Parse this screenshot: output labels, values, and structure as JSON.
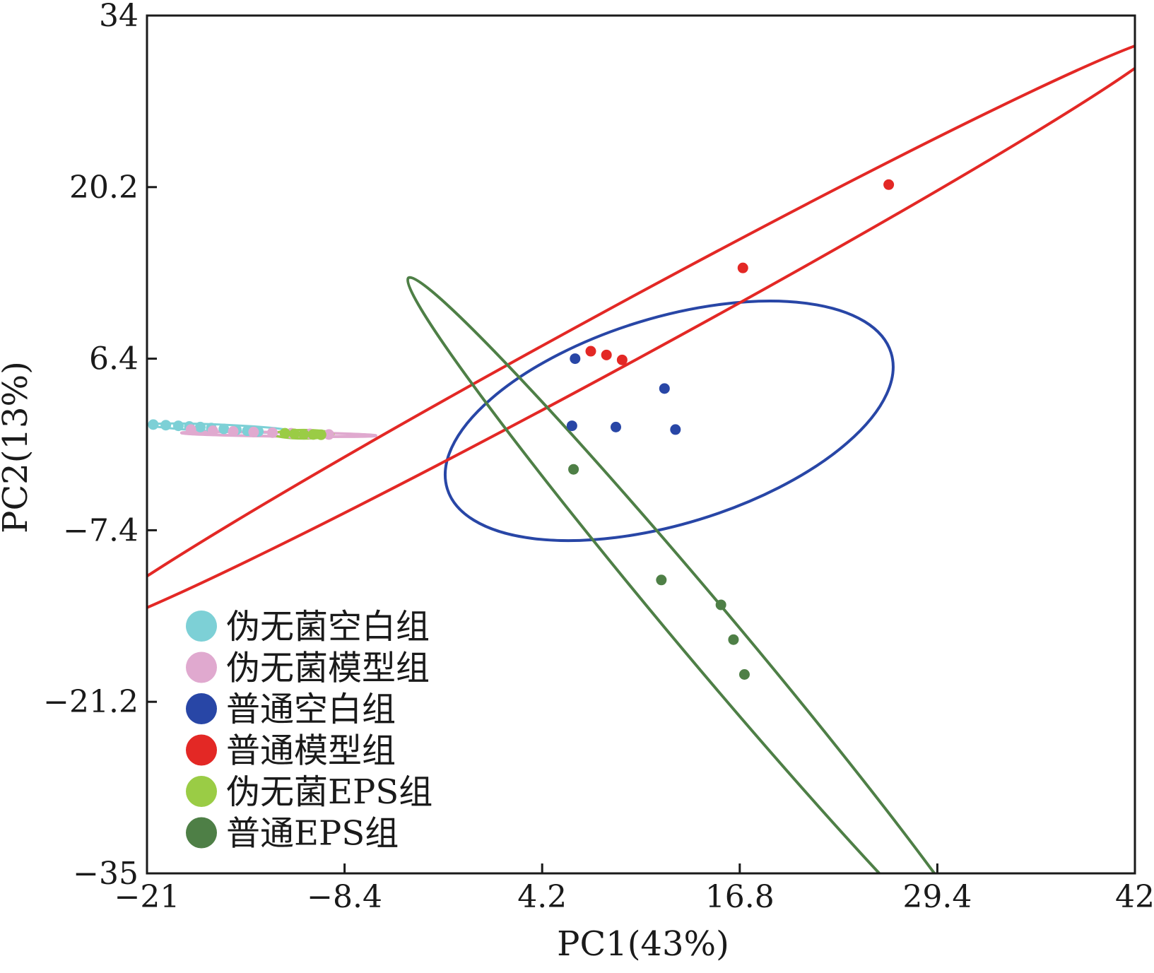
{
  "chart_data": {
    "type": "scatter",
    "title": "",
    "xlabel": "PC1(43%)",
    "ylabel": "PC2(13%)",
    "xlim": [
      -21,
      42
    ],
    "ylim": [
      -35,
      34
    ],
    "xticks": [
      -21,
      -8.4,
      4.2,
      16.8,
      29.4,
      42
    ],
    "yticks": [
      -35,
      -21.2,
      -7.4,
      6.4,
      20.2,
      34
    ],
    "xtick_labels": [
      "−21",
      "−8.4",
      "4.2",
      "16.8",
      "29.4",
      "42"
    ],
    "ytick_labels": [
      "−35",
      "−21.2",
      "−7.4",
      "6.4",
      "20.2",
      "34"
    ],
    "grid": false,
    "legend_position": "bottom-left",
    "series": [
      {
        "name": "伪无菌空白组",
        "color": "#7dd0d6",
        "points": [
          [
            -20.6,
            1.1
          ],
          [
            -19.8,
            1.05
          ],
          [
            -19,
            1.0
          ],
          [
            -18.3,
            0.95
          ],
          [
            -17.6,
            0.9
          ],
          [
            -16.9,
            0.82
          ],
          [
            -16.1,
            0.75
          ],
          [
            -15.3,
            0.68
          ],
          [
            -14.6,
            0.6
          ],
          [
            -13.9,
            0.55
          ]
        ],
        "ellipse": {
          "cx": -16.3,
          "cy": 0.82,
          "rx": 4.5,
          "ry": 0.28,
          "angle": -2.5
        }
      },
      {
        "name": "伪无菌模型组",
        "color": "#e0a9cf",
        "points": [
          [
            -18.2,
            0.7
          ],
          [
            -16.8,
            0.6
          ],
          [
            -15.5,
            0.55
          ],
          [
            -14.2,
            0.5
          ],
          [
            -13,
            0.45
          ],
          [
            -11.8,
            0.4
          ],
          [
            -10.6,
            0.35
          ],
          [
            -9.4,
            0.3
          ]
        ],
        "ellipse": {
          "cx": -12.6,
          "cy": 0.32,
          "rx": 6.2,
          "ry": 0.16,
          "angle": -0.8
        }
      },
      {
        "name": "普通空白组",
        "color": "#2846a6",
        "points": [
          [
            6.3,
            6.4
          ],
          [
            12,
            4.0
          ],
          [
            6.1,
            1.0
          ],
          [
            8.9,
            0.9
          ],
          [
            12.7,
            0.7
          ]
        ],
        "ellipse": {
          "cx": 12.3,
          "cy": 1.4,
          "rx": 14.8,
          "ry": 8.3,
          "angle": 17
        }
      },
      {
        "name": "普通模型组",
        "color": "#e32825",
        "points": [
          [
            26.3,
            20.4
          ],
          [
            17,
            13.7
          ],
          [
            7.3,
            7.0
          ],
          [
            8.3,
            6.7
          ],
          [
            9.3,
            6.3
          ]
        ],
        "ellipse": {
          "cx": 9.4,
          "cy": 8.4,
          "rx": 39.5,
          "ry": 2.3,
          "angle": 28.5
        }
      },
      {
        "name": "伪无菌EPS组",
        "color": "#9acc45",
        "points": [
          [
            -12.2,
            0.4
          ],
          [
            -11.6,
            0.35
          ],
          [
            -11,
            0.32
          ],
          [
            -10.4,
            0.3
          ],
          [
            -9.9,
            0.28
          ]
        ],
        "ellipse": {
          "cx": -11,
          "cy": 0.32,
          "rx": 1.9,
          "ry": 0.35,
          "angle": 0
        }
      },
      {
        "name": "普通EPS组",
        "color": "#4e7f46",
        "points": [
          [
            6.2,
            -2.5
          ],
          [
            11.8,
            -11.4
          ],
          [
            15.6,
            -13.4
          ],
          [
            16.4,
            -16.2
          ],
          [
            17.1,
            -19.0
          ]
        ],
        "ellipse": {
          "cx": 14.7,
          "cy": -15.7,
          "rx": 29.6,
          "ry": 2.3,
          "angle": -50
        }
      }
    ]
  }
}
